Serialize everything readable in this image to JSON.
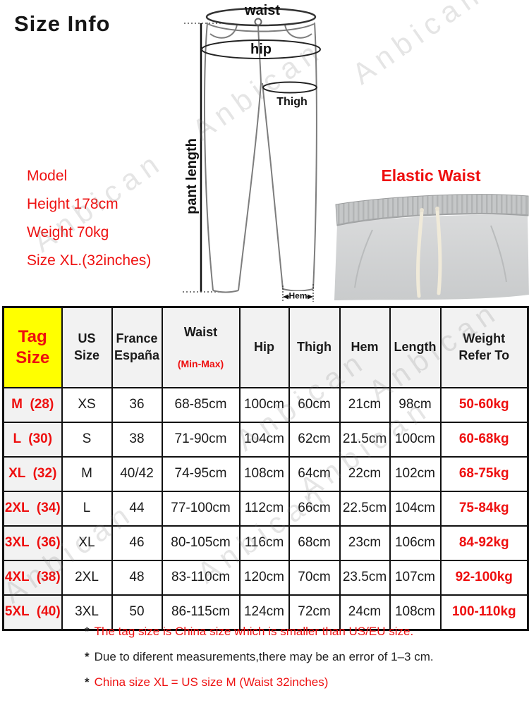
{
  "title": "Size Info",
  "watermark_text": "Anbican",
  "diagram": {
    "waist_label": "waist",
    "hip_label": "hip",
    "thigh_label": "Thigh",
    "hem_label": "Hem",
    "pant_length_label": "pant length"
  },
  "model_info": {
    "lines": [
      "Model",
      "Height 178cm",
      "Weight 70kg",
      "Size XL.(32inches)"
    ]
  },
  "elastic_waist": {
    "label": "Elastic Waist"
  },
  "size_table": {
    "headers": [
      "Tag\nSize",
      "US\nSize",
      "France\nEspaña",
      "Waist",
      "Hip",
      "Thigh",
      "Hem",
      "Length",
      "Weight\nRefer To"
    ],
    "waist_subheader": "(Min-Max)",
    "rows": [
      [
        "M  (28)",
        "XS",
        "36",
        "68-85cm",
        "100cm",
        "60cm",
        "21cm",
        "98cm",
        "50-60kg"
      ],
      [
        "L  (30)",
        "S",
        "38",
        "71-90cm",
        "104cm",
        "62cm",
        "21.5cm",
        "100cm",
        "60-68kg"
      ],
      [
        "XL  (32)",
        "M",
        "40/42",
        "74-95cm",
        "108cm",
        "64cm",
        "22cm",
        "102cm",
        "68-75kg"
      ],
      [
        "2XL  (34)",
        "L",
        "44",
        "77-100cm",
        "112cm",
        "66cm",
        "22.5cm",
        "104cm",
        "75-84kg"
      ],
      [
        "3XL  (36)",
        "XL",
        "46",
        "80-105cm",
        "116cm",
        "68cm",
        "23cm",
        "106cm",
        "84-92kg"
      ],
      [
        "4XL  (38)",
        "2XL",
        "48",
        "83-110cm",
        "120cm",
        "70cm",
        "23.5cm",
        "107cm",
        "92-100kg"
      ],
      [
        "5XL  (40)",
        "3XL",
        "50",
        "86-115cm",
        "124cm",
        "72cm",
        "24cm",
        "108cm",
        "100-110kg"
      ]
    ]
  },
  "notes": [
    {
      "mark": "*",
      "text": "The tag size is China size which is smaller than US/EU size.",
      "emphasis": "red"
    },
    {
      "mark": "*",
      "text": "Due to diferent measurements,there may be an error of 1–3 cm.",
      "emphasis": "black"
    },
    {
      "mark": "*",
      "text": "China size XL = US size M (Waist 32inches)",
      "emphasis": "red"
    }
  ],
  "colors": {
    "accent_red": "#ee0f0f",
    "tag_header_bg": "#ffff00",
    "header_bg": "#f2f2f2",
    "table_border": "#111111",
    "sweatpants_gray": "#cfd1d2",
    "drawstring": "#f0ead9"
  }
}
